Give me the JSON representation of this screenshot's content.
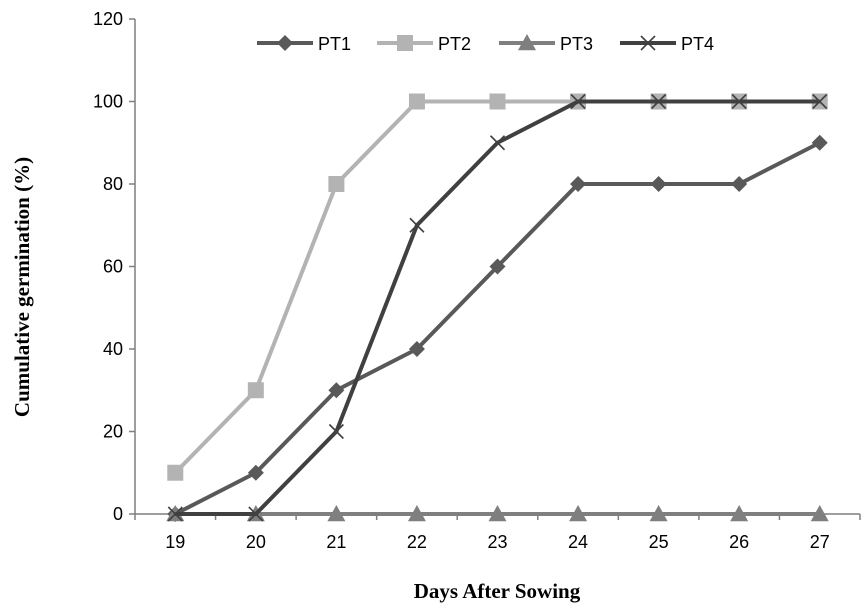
{
  "chart_data": {
    "type": "line",
    "title": "",
    "xlabel": "Days After Sowing",
    "ylabel": "Cumulative germination (%)",
    "x": [
      19,
      20,
      21,
      22,
      23,
      24,
      25,
      26,
      27
    ],
    "x_tick_labels": [
      "19",
      "20",
      "21",
      "22",
      "23",
      "24",
      "25",
      "26",
      "27"
    ],
    "y_tick_labels": [
      "0",
      "20",
      "40",
      "60",
      "80",
      "100",
      "120"
    ],
    "ylim": [
      0,
      120
    ],
    "grid": false,
    "legend_position": "top",
    "series": [
      {
        "name": "PT1",
        "marker": "diamond",
        "color": "#595959",
        "values": [
          0,
          10,
          30,
          40,
          60,
          80,
          80,
          80,
          90
        ]
      },
      {
        "name": "PT2",
        "marker": "square",
        "color": "#b3b3b3",
        "values": [
          10,
          30,
          80,
          100,
          100,
          100,
          100,
          100,
          100
        ]
      },
      {
        "name": "PT3",
        "marker": "triangle",
        "color": "#7f7f7f",
        "values": [
          0,
          0,
          0,
          0,
          0,
          0,
          0,
          0,
          0
        ]
      },
      {
        "name": "PT4",
        "marker": "x",
        "color": "#404040",
        "values": [
          0,
          0,
          20,
          70,
          90,
          100,
          100,
          100,
          100
        ]
      }
    ]
  }
}
